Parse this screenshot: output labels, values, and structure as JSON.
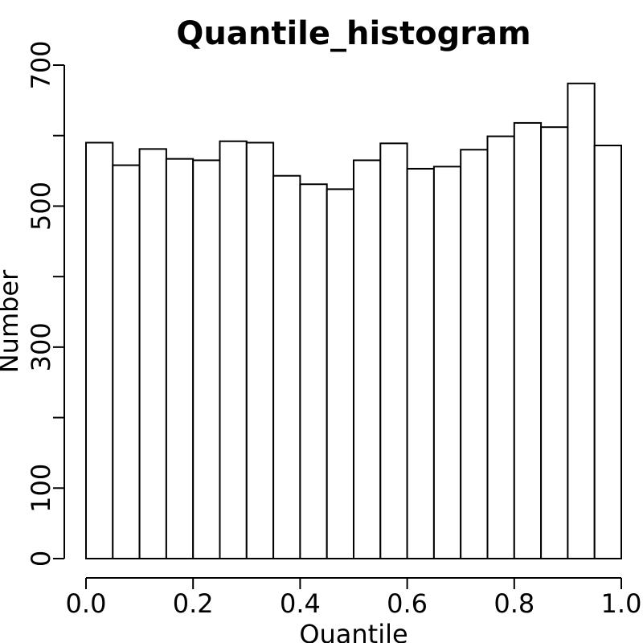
{
  "chart_data": {
    "type": "bar",
    "title": "Quantile_histogram",
    "xlabel": "Quantile",
    "ylabel": "Number",
    "bin_edges": [
      0.0,
      0.05,
      0.1,
      0.15,
      0.2,
      0.25,
      0.3,
      0.35,
      0.4,
      0.45,
      0.5,
      0.55,
      0.6,
      0.65,
      0.7,
      0.75,
      0.8,
      0.85,
      0.9,
      0.95,
      1.0
    ],
    "values": [
      590,
      558,
      581,
      567,
      565,
      592,
      590,
      543,
      531,
      524,
      565,
      589,
      553,
      556,
      580,
      599,
      618,
      612,
      674,
      586
    ],
    "xlim": [
      0.0,
      1.0
    ],
    "ylim": [
      0,
      700
    ],
    "x_ticks": [
      "0.0",
      "0.2",
      "0.4",
      "0.6",
      "0.8",
      "1.0"
    ],
    "x_tick_values": [
      0.0,
      0.2,
      0.4,
      0.6,
      0.8,
      1.0
    ],
    "y_tick_values": [
      0,
      100,
      200,
      300,
      400,
      500,
      600,
      700
    ],
    "y_tick_labels": [
      "0",
      "100",
      "",
      "300",
      "",
      "500",
      "",
      "700"
    ],
    "grid": false,
    "bar_fill": "#ffffff",
    "bar_stroke": "#000000"
  }
}
